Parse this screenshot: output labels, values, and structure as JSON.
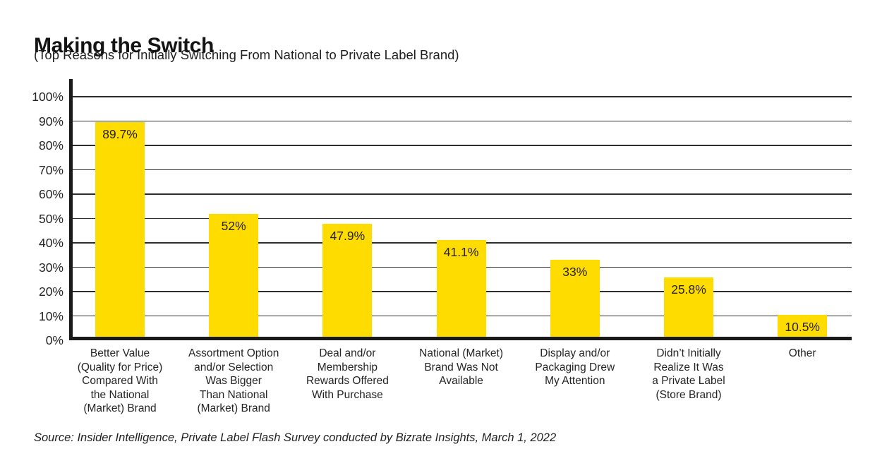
{
  "source": "Source: Insider Intelligence, Private Label Flash Survey conducted by Bizrate Insights, March 1, 2022",
  "chart_data": {
    "type": "bar",
    "title": "Making the Switch",
    "subtitle": "(Top Reasons for Initially Switching From National to Private Label Brand)",
    "categories": [
      "Better Value (Quality for Price) Compared With the National (Market) Brand",
      "Assortment Option and/or Selection Was Bigger Than National (Market) Brand",
      "Deal and/or Membership Rewards Offered With Purchase",
      "National (Market) Brand Was Not Available",
      "Display and/or Packaging Drew My Attention",
      "Didn’t Initially Realize It Was a Private Label (Store Brand)",
      "Other"
    ],
    "category_lines": [
      [
        "Better Value",
        "(Quality for Price)",
        "Compared With",
        "the National",
        "(Market) Brand"
      ],
      [
        "Assortment Option",
        "and/or Selection",
        "Was Bigger",
        "Than National",
        "(Market) Brand"
      ],
      [
        "Deal and/or",
        "Membership",
        "Rewards Offered",
        "With Purchase"
      ],
      [
        "National (Market)",
        "Brand Was Not",
        "Available"
      ],
      [
        "Display and/or",
        "Packaging Drew",
        "My Attention"
      ],
      [
        "Didn’t Initially",
        "Realize It Was",
        "a Private Label",
        "(Store Brand)"
      ],
      [
        "Other"
      ]
    ],
    "values": [
      89.7,
      52,
      47.9,
      41.1,
      33,
      25.8,
      10.5
    ],
    "value_labels": [
      "89.7%",
      "52%",
      "47.9%",
      "41.1%",
      "33%",
      "25.8%",
      "10.5%"
    ],
    "ylim": [
      0,
      100
    ],
    "ytick_step": 10,
    "yticks": [
      {
        "value": 100,
        "label": "100%"
      },
      {
        "value": 90,
        "label": "90%"
      },
      {
        "value": 80,
        "label": "80%"
      },
      {
        "value": 70,
        "label": "70%"
      },
      {
        "value": 60,
        "label": "60%"
      },
      {
        "value": 50,
        "label": "50%"
      },
      {
        "value": 40,
        "label": "40%"
      },
      {
        "value": 30,
        "label": "30%"
      },
      {
        "value": 20,
        "label": "20%"
      },
      {
        "value": 10,
        "label": "10%"
      },
      {
        "value": 0,
        "label": "0%"
      }
    ],
    "grid": true,
    "legend": false,
    "value_labels_position": "inside-top",
    "colors": {
      "bar": "#FFDC00",
      "axis": "#1a1a1a",
      "grid": "#2d2d2d",
      "text": "#262324",
      "background": "#ffffff"
    }
  }
}
